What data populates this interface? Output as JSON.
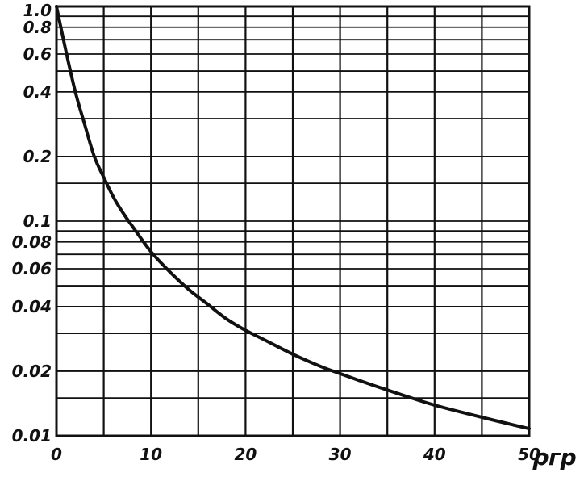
{
  "chart_data": {
    "type": "line",
    "title": "",
    "xlabel": "ρгр",
    "ylabel": "",
    "y_scale": "log",
    "xlim": [
      0,
      50
    ],
    "ylim": [
      0.01,
      1.0
    ],
    "grid": true,
    "x_ticks": [
      0,
      10,
      20,
      30,
      40,
      50
    ],
    "x_tick_labels": [
      "0",
      "10",
      "20",
      "30",
      "40",
      "50"
    ],
    "y_ticks": [
      0.01,
      0.02,
      0.04,
      0.06,
      0.08,
      0.1,
      0.2,
      0.4,
      0.6,
      0.8,
      1.0
    ],
    "y_tick_labels": [
      "0.01",
      "0.02",
      "0.04",
      "0.06",
      "0.08",
      "0.1",
      "0.2",
      "0.4",
      "0.6",
      "0.8",
      "1.0"
    ],
    "x_gridlines": [
      0,
      5,
      10,
      15,
      20,
      25,
      30,
      35,
      40,
      45,
      50
    ],
    "y_gridlines": [
      0.01,
      0.015,
      0.02,
      0.03,
      0.04,
      0.05,
      0.06,
      0.07,
      0.08,
      0.09,
      0.1,
      0.15,
      0.2,
      0.3,
      0.4,
      0.5,
      0.6,
      0.7,
      0.8,
      0.9,
      1.0
    ],
    "series": [
      {
        "x": [
          0,
          1,
          2,
          3,
          4,
          5,
          6,
          7,
          8,
          10,
          12,
          14,
          16,
          18,
          20,
          22,
          25,
          28,
          30,
          33,
          36,
          40,
          45,
          50
        ],
        "values": [
          1.0,
          0.62,
          0.4,
          0.28,
          0.2,
          0.16,
          0.13,
          0.11,
          0.095,
          0.072,
          0.058,
          0.048,
          0.041,
          0.035,
          0.031,
          0.028,
          0.024,
          0.021,
          0.0195,
          0.0175,
          0.0158,
          0.0139,
          0.0122,
          0.0108
        ]
      }
    ]
  }
}
